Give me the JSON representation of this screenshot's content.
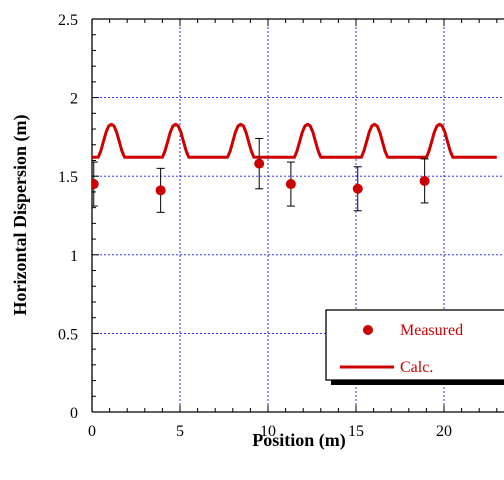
{
  "chart_data": {
    "type": "scatter",
    "title": "",
    "xlabel": "Position (m)",
    "ylabel": "Horizontal Dispersion (m)",
    "xlim": [
      0,
      23
    ],
    "ylim": [
      0,
      2.5
    ],
    "x_ticks": [
      0,
      5,
      10,
      15,
      20
    ],
    "y_ticks": [
      0,
      0.5,
      1,
      1.5,
      2,
      2.5
    ],
    "x_tick_labels": [
      "0",
      "5",
      "10",
      "15",
      "20"
    ],
    "y_tick_labels": [
      "0",
      "0.5",
      "1",
      "1.5",
      "2",
      "2.5"
    ],
    "grid": true,
    "legend_position": "bottom-right",
    "series": [
      {
        "name": "Measured",
        "kind": "points-with-error-bars",
        "color": "#cc0000",
        "x": [
          0.1,
          3.9,
          9.5,
          11.3,
          15.1,
          18.9
        ],
        "y": [
          1.45,
          1.41,
          1.58,
          1.45,
          1.42,
          1.47
        ],
        "yerr": [
          0.14,
          0.14,
          0.16,
          0.14,
          0.14,
          0.14
        ]
      },
      {
        "name": "Calc.",
        "kind": "line",
        "color": "#cc0000",
        "x": [
          0,
          0.35,
          0.5,
          0.65,
          0.8,
          0.95,
          1.1,
          1.25,
          1.4,
          1.55,
          1.7,
          1.85,
          2.0,
          2.15,
          2.3,
          4.0,
          4.15,
          4.3,
          4.45,
          4.6,
          4.75,
          4.9,
          5.05,
          5.2,
          5.35,
          5.5,
          5.65,
          5.8,
          5.95,
          7.7,
          7.85,
          8.0,
          8.15,
          8.3,
          8.45,
          8.6,
          8.75,
          8.9,
          9.05,
          9.2,
          9.35,
          9.5,
          9.65,
          11.5,
          11.65,
          11.8,
          11.95,
          12.1,
          12.25,
          12.4,
          12.55,
          12.7,
          12.85,
          13.0,
          13.15,
          13.3,
          13.45,
          15.3,
          15.45,
          15.6,
          15.75,
          15.9,
          16.05,
          16.2,
          16.35,
          16.5,
          16.65,
          16.8,
          16.95,
          17.1,
          17.25,
          19.0,
          19.15,
          19.3,
          19.45,
          19.6,
          19.75,
          19.9,
          20.05,
          20.2,
          20.35,
          20.5,
          20.65,
          20.8,
          20.95,
          23
        ],
        "y": [
          1.62,
          1.62,
          1.66,
          1.72,
          1.78,
          1.82,
          1.83,
          1.82,
          1.78,
          1.72,
          1.66,
          1.62,
          1.62,
          1.62,
          1.62,
          1.62,
          1.66,
          1.72,
          1.78,
          1.82,
          1.83,
          1.82,
          1.78,
          1.72,
          1.66,
          1.62,
          1.62,
          1.62,
          1.62,
          1.62,
          1.66,
          1.72,
          1.78,
          1.82,
          1.83,
          1.82,
          1.78,
          1.72,
          1.66,
          1.62,
          1.62,
          1.62,
          1.62,
          1.62,
          1.66,
          1.72,
          1.78,
          1.82,
          1.83,
          1.82,
          1.78,
          1.72,
          1.66,
          1.62,
          1.62,
          1.62,
          1.62,
          1.62,
          1.66,
          1.72,
          1.78,
          1.82,
          1.83,
          1.82,
          1.78,
          1.72,
          1.66,
          1.62,
          1.62,
          1.62,
          1.62,
          1.62,
          1.66,
          1.72,
          1.78,
          1.82,
          1.83,
          1.82,
          1.78,
          1.72,
          1.66,
          1.62,
          1.62,
          1.62,
          1.62,
          1.62
        ]
      }
    ]
  }
}
